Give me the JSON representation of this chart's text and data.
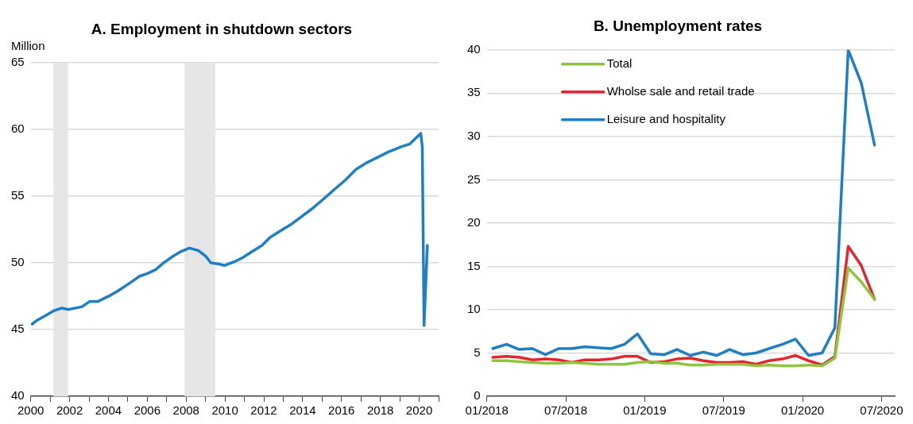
{
  "chart_data": [
    {
      "type": "line",
      "title": "A. Employment in shutdown sectors",
      "ylabel": "Million",
      "series": [
        {
          "color": "#1f7fc4",
          "x": [
            2000.07,
            2000.34,
            2000.83,
            2001.18,
            2001.59,
            2001.94,
            2002.63,
            2003.04,
            2003.46,
            2004.02,
            2004.5,
            2005.12,
            2005.61,
            2006.02,
            2006.44,
            2006.85,
            2007.34,
            2007.68,
            2008.17,
            2008.65,
            2009.0,
            2009.27,
            2009.69,
            2009.97,
            2010.52,
            2010.93,
            2011.35,
            2011.91,
            2012.32,
            2012.87,
            2013.43,
            2013.98,
            2014.53,
            2015.09,
            2015.64,
            2016.2,
            2016.75,
            2017.3,
            2017.86,
            2018.41,
            2019.1,
            2019.52,
            2020.08,
            2020.16,
            2020.25,
            2020.42
          ],
          "values": [
            45.4,
            45.7,
            46.1,
            46.4,
            46.6,
            46.5,
            46.7,
            47.1,
            47.1,
            47.5,
            47.9,
            48.5,
            49.0,
            49.2,
            49.5,
            50.0,
            50.5,
            50.8,
            51.1,
            50.9,
            50.5,
            50.0,
            49.9,
            49.8,
            50.1,
            50.4,
            50.8,
            51.3,
            51.9,
            52.4,
            52.9,
            53.5,
            54.1,
            54.8,
            55.5,
            56.2,
            57.0,
            57.5,
            57.9,
            58.3,
            58.7,
            58.9,
            59.7,
            58.7,
            45.3,
            51.3
          ]
        }
      ],
      "xlim": [
        2000,
        2021
      ],
      "xticks": [
        2000,
        {
          "value": 2001,
          "label": null
        },
        2002,
        {
          "value": 2003,
          "label": null
        },
        2004,
        {
          "value": 2005,
          "label": null
        },
        2006,
        {
          "value": 2007,
          "label": null
        },
        2008,
        {
          "value": 2009,
          "label": null
        },
        2010,
        {
          "value": 2011,
          "label": null
        },
        2012,
        {
          "value": 2013,
          "label": null
        },
        2014,
        {
          "value": 2015,
          "label": null
        },
        2016,
        {
          "value": 2017,
          "label": null
        },
        2018,
        {
          "value": 2019,
          "label": null
        },
        2020,
        {
          "value": 2021,
          "label": null
        }
      ],
      "ylim": [
        40,
        65
      ],
      "yticks": [
        40,
        45,
        50,
        55,
        60,
        65
      ],
      "bands": [
        {
          "axis": "x",
          "from": 2001.17,
          "to": 2001.92,
          "color": "#e6e6e6"
        },
        {
          "axis": "x",
          "from": 2007.92,
          "to": 2009.5,
          "color": "#e6e6e6"
        }
      ],
      "grid": "y",
      "legend": false,
      "marker": "none",
      "line_style": "solid"
    },
    {
      "type": "line",
      "title": "B. Unemployment rates",
      "x": [
        "2018-01-15",
        "2018-02-15",
        "2018-03-15",
        "2018-04-15",
        "2018-05-15",
        "2018-06-15",
        "2018-07-15",
        "2018-08-15",
        "2018-09-15",
        "2018-10-15",
        "2018-11-15",
        "2018-12-15",
        "2019-01-15",
        "2019-02-15",
        "2019-03-15",
        "2019-04-15",
        "2019-05-15",
        "2019-06-15",
        "2019-07-15",
        "2019-08-15",
        "2019-09-15",
        "2019-10-15",
        "2019-11-15",
        "2019-12-15",
        "2020-01-15",
        "2020-02-15",
        "2020-03-15",
        "2020-04-15",
        "2020-05-15",
        "2020-06-15"
      ],
      "series": [
        {
          "name": "Total",
          "color": "#8cc63f",
          "values": [
            4.1,
            4.1,
            4.0,
            3.9,
            3.8,
            3.8,
            3.9,
            3.8,
            3.7,
            3.7,
            3.7,
            3.9,
            4.0,
            3.8,
            3.8,
            3.6,
            3.6,
            3.7,
            3.7,
            3.7,
            3.5,
            3.6,
            3.5,
            3.5,
            3.6,
            3.5,
            4.4,
            14.8,
            13.2,
            11.2
          ]
        },
        {
          "name": "Wholse sale and retail trade",
          "color": "#e3262d",
          "values": [
            4.5,
            4.6,
            4.5,
            4.2,
            4.3,
            4.2,
            3.9,
            4.2,
            4.2,
            4.3,
            4.6,
            4.6,
            3.9,
            4.0,
            4.3,
            4.4,
            4.1,
            3.9,
            3.9,
            4.0,
            3.7,
            4.1,
            4.3,
            4.7,
            4.1,
            3.6,
            4.6,
            17.3,
            15.1,
            11.2
          ]
        },
        {
          "name": "Leisure and hospitality",
          "color": "#1f7fc4",
          "values": [
            5.5,
            6.0,
            5.4,
            5.5,
            4.8,
            5.5,
            5.5,
            5.7,
            5.6,
            5.5,
            6.0,
            7.2,
            4.9,
            4.8,
            5.4,
            4.7,
            5.1,
            4.7,
            5.4,
            4.8,
            5.0,
            5.5,
            6.0,
            6.6,
            4.7,
            5.0,
            7.9,
            40,
            36.2,
            29.0
          ]
        }
      ],
      "xlim": [
        "2018-01-01",
        "2020-08-01"
      ],
      "xticks": [
        {
          "value": "2018-01",
          "label": "01/2018"
        },
        {
          "value": "2018-07",
          "label": "07/2018"
        },
        {
          "value": "2019-01",
          "label": "01/2019"
        },
        {
          "value": "2019-07",
          "label": "07/2019"
        },
        {
          "value": "2020-01",
          "label": "01/2020"
        },
        {
          "value": "2020-07",
          "label": "07/2020"
        }
      ],
      "ylim": [
        0,
        40
      ],
      "yticks": [
        0,
        5,
        10,
        15,
        20,
        25,
        30,
        35,
        40
      ],
      "grid": "y",
      "legend": "top left",
      "marker": "none",
      "line_style": "solid"
    }
  ]
}
